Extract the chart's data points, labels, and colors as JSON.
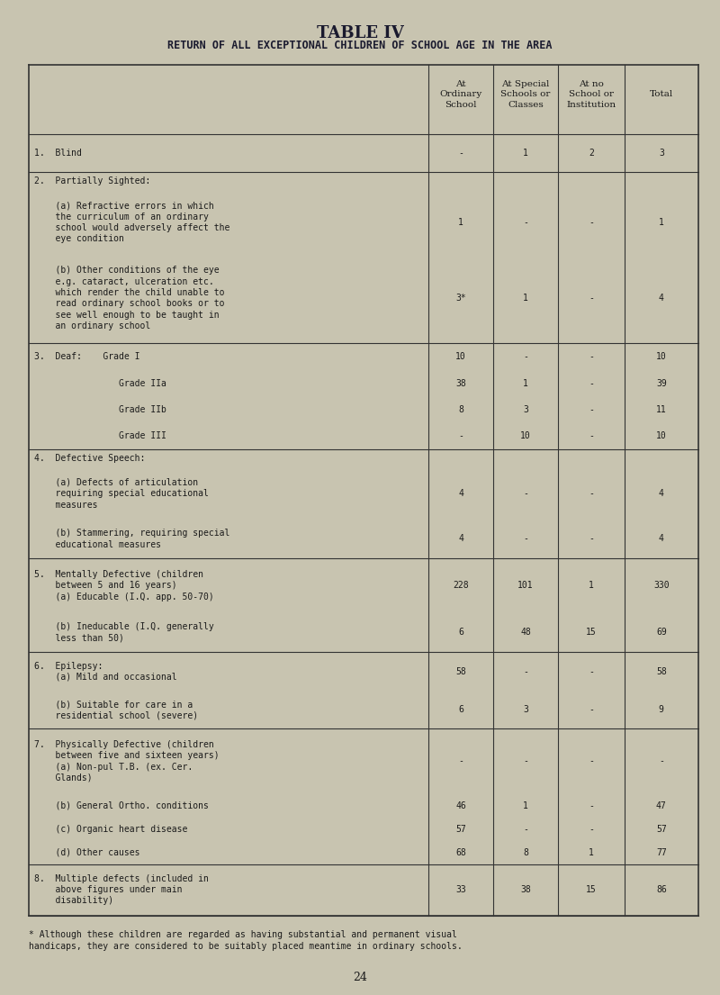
{
  "title1": "TABLE IV",
  "title2": "RETURN OF ALL EXCEPTIONAL CHILDREN OF SCHOOL AGE IN THE AREA",
  "col_headers": [
    "At\nOrdinary\nSchool",
    "At Special\nSchools or\nClasses",
    "At no\nSchool or\nInstitution",
    "Total"
  ],
  "footnote": "* Although these children are regarded as having substantial and permanent visual\nhandicaps, they are considered to be suitably placed meantime in ordinary schools.",
  "page_number": "24",
  "background_color": "#c8c4b0",
  "table_bg": "#c8c4b0",
  "rows": [
    {
      "label": "1.  Blind",
      "indent": 0,
      "values": [
        "-",
        "1",
        "2",
        "3"
      ],
      "bold_label": false,
      "separator_after": true
    },
    {
      "label": "2.  Partially Sighted:",
      "indent": 0,
      "values": [
        "",
        "",
        "",
        ""
      ],
      "bold_label": false,
      "separator_after": false,
      "is_section_header": true
    },
    {
      "label": "    (a) Refractive errors in which\n    the curriculum of an ordinary\n    school would adversely affect the\n    eye condition",
      "indent": 1,
      "values": [
        "1",
        "-",
        "-",
        "1"
      ],
      "bold_label": false,
      "separator_after": false
    },
    {
      "label": "    (b) Other conditions of the eye\n    e.g. cataract, ulceration etc.\n    which render the child unable to\n    read ordinary school books or to\n    see well enough to be taught in\n    an ordinary school",
      "indent": 1,
      "values": [
        "3*",
        "1",
        "-",
        "4"
      ],
      "bold_label": false,
      "separator_after": true
    },
    {
      "label": "3.  Deaf:    Grade I",
      "indent": 0,
      "values": [
        "10",
        "-",
        "-",
        "10"
      ],
      "bold_label": false,
      "separator_after": false
    },
    {
      "label": "                Grade IIa",
      "indent": 0,
      "values": [
        "38",
        "1",
        "-",
        "39"
      ],
      "bold_label": false,
      "separator_after": false
    },
    {
      "label": "                Grade IIb",
      "indent": 0,
      "values": [
        "8",
        "3",
        "-",
        "11"
      ],
      "bold_label": false,
      "separator_after": false
    },
    {
      "label": "                Grade III",
      "indent": 0,
      "values": [
        "-",
        "10",
        "-",
        "10"
      ],
      "bold_label": false,
      "separator_after": true
    },
    {
      "label": "4.  Defective Speech:",
      "indent": 0,
      "values": [
        "",
        "",
        "",
        ""
      ],
      "bold_label": false,
      "separator_after": false,
      "is_section_header": true
    },
    {
      "label": "    (a) Defects of articulation\n    requiring special educational\n    measures",
      "indent": 1,
      "values": [
        "4",
        "-",
        "-",
        "4"
      ],
      "bold_label": false,
      "separator_after": false
    },
    {
      "label": "    (b) Stammering, requiring special\n    educational measures",
      "indent": 1,
      "values": [
        "4",
        "-",
        "-",
        "4"
      ],
      "bold_label": false,
      "separator_after": true
    },
    {
      "label": "5.  Mentally Defective (children\n    between 5 and 16 years)\n    (a) Educable (I.Q. app. 50-70)",
      "indent": 0,
      "values": [
        "228",
        "101",
        "1",
        "330"
      ],
      "bold_label": false,
      "separator_after": false
    },
    {
      "label": "    (b) Ineducable (I.Q. generally\n    less than 50)",
      "indent": 1,
      "values": [
        "6",
        "48",
        "15",
        "69"
      ],
      "bold_label": false,
      "separator_after": true
    },
    {
      "label": "6.  Epilepsy:\n    (a) Mild and occasional",
      "indent": 0,
      "values": [
        "58",
        "-",
        "-",
        "58"
      ],
      "bold_label": false,
      "separator_after": false
    },
    {
      "label": "    (b) Suitable for care in a\n    residential school (severe)",
      "indent": 1,
      "values": [
        "6",
        "3",
        "-",
        "9"
      ],
      "bold_label": false,
      "separator_after": true
    },
    {
      "label": "7.  Physically Defective (children\n    between five and sixteen years)\n    (a) Non-pul T.B. (ex. Cer.\n    Glands)",
      "indent": 0,
      "values": [
        "-",
        "-",
        "-",
        "-"
      ],
      "bold_label": false,
      "separator_after": false
    },
    {
      "label": "    (b) General Ortho. conditions",
      "indent": 1,
      "values": [
        "46",
        "1",
        "-",
        "47"
      ],
      "bold_label": false,
      "separator_after": false
    },
    {
      "label": "    (c) Organic heart disease",
      "indent": 1,
      "values": [
        "57",
        "-",
        "-",
        "57"
      ],
      "bold_label": false,
      "separator_after": false
    },
    {
      "label": "    (d) Other causes",
      "indent": 1,
      "values": [
        "68",
        "8",
        "1",
        "77"
      ],
      "bold_label": false,
      "separator_after": true
    },
    {
      "label": "8.  Multiple defects (included in\n    above figures under main\n    disability)",
      "indent": 0,
      "values": [
        "33",
        "38",
        "15",
        "86"
      ],
      "bold_label": false,
      "separator_after": true
    }
  ]
}
